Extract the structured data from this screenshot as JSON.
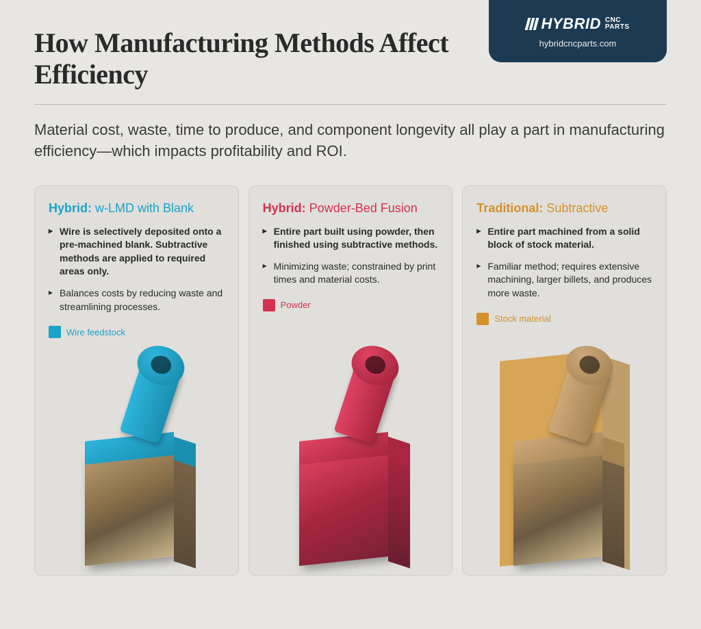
{
  "header": {
    "title": "How Manufacturing Methods Affect Efficiency",
    "brand_name_main": "HYBRID",
    "brand_name_sub1": "CNC",
    "brand_name_sub2": "PARTS",
    "brand_url": "hybridcncparts.com",
    "brand_bg": "#1c3a52",
    "brand_fg": "#ffffff"
  },
  "intro": "Material cost, waste, time to produce, and component longevity all play a part in manufacturing efficiency—which impacts profitability and ROI.",
  "colors": {
    "page_bg": "#e8e6e3",
    "card_bg": "rgba(210,208,204,0.35)",
    "text": "#2a2a2a",
    "divider": "#b8b5b0"
  },
  "cards": [
    {
      "prefix": "Hybrid:",
      "suffix": "w-LMD with Blank",
      "title_color": "#1aa3c9",
      "bullets": [
        {
          "text": "Wire is selectively deposited onto a pre-machined blank. Subtractive methods are applied to required areas only.",
          "bold": true
        },
        {
          "text": "Balances costs by reducing waste and streamlining processes.",
          "bold": false
        }
      ],
      "legend_label": "Wire feedstock",
      "legend_color": "#1aa3c9",
      "part_color_top": "#2db4dd",
      "part_color_shade": "#1a8fb0",
      "show_stock_box": false,
      "base_metal": true
    },
    {
      "prefix": "Hybrid:",
      "suffix": "Powder-Bed Fusion",
      "title_color": "#d4314f",
      "bullets": [
        {
          "text": "Entire part built using powder, then finished using subtractive methods.",
          "bold": true
        },
        {
          "text": "Minimizing waste; constrained by print times and material costs.",
          "bold": false
        }
      ],
      "legend_label": "Powder",
      "legend_color": "#d4314f",
      "part_color_top": "#e04362",
      "part_color_shade": "#a82640",
      "show_stock_box": false,
      "base_metal": false
    },
    {
      "prefix": "Traditional:",
      "suffix": "Subtractive",
      "title_color": "#d4912b",
      "bullets": [
        {
          "text": "Entire part machined from a solid block of stock material.",
          "bold": true
        },
        {
          "text": "Familiar method; requires extensive machining, larger billets, and produces more waste.",
          "bold": false
        }
      ],
      "legend_label": "Stock material",
      "legend_color": "#d4912b",
      "part_color_top": "#cda87a",
      "part_color_shade": "#a88654",
      "show_stock_box": true,
      "stock_color": "#d4912b",
      "base_metal": true
    }
  ]
}
